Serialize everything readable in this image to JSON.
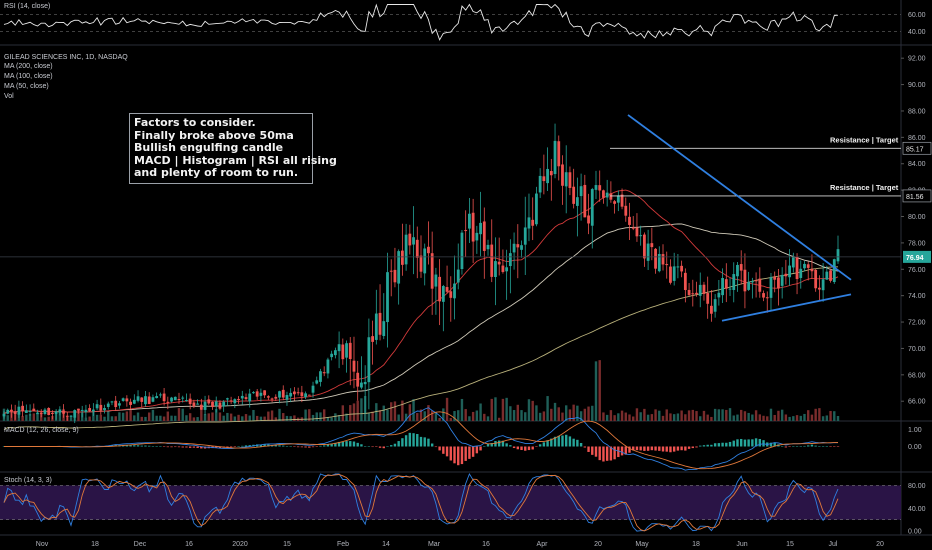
{
  "chart_data": {
    "type": "candlestick",
    "symbol_title": "GILEAD SCIENCES INC, 1D, NASDAQ",
    "legend": [
      "MA (200, close)",
      "MA (100, close)",
      "MA (50, close)",
      "Vol"
    ],
    "price_axis": [
      "92.00",
      "90.00",
      "88.00",
      "86.00",
      "84.00",
      "82.00",
      "80.00",
      "78.00",
      "76.00",
      "74.00",
      "72.00",
      "70.00",
      "68.00",
      "66.00"
    ],
    "last_price": "76.94",
    "resistance_levels": [
      {
        "label": "Resistance | Target",
        "price": "85.17"
      },
      {
        "label": "Resistance | Target",
        "price": "81.56"
      }
    ],
    "annotation_lines": [
      "Factors to consider.",
      "Finally broke above 50ma",
      "Bullish engulfing candle",
      "MACD | Histogram | RSI all rising",
      "and plenty of room to run."
    ],
    "rsi": {
      "title": "RSI (14, close)",
      "levels": [
        "60.00",
        "40.00"
      ]
    },
    "macd": {
      "title": "MACD (12, 26, close, 9)",
      "levels": [
        "1.00",
        "0.00"
      ]
    },
    "stoch": {
      "title": "Stoch (14, 3, 3)",
      "levels": [
        "80.00",
        "40.00",
        "0.00"
      ]
    },
    "time_axis": [
      "Nov",
      "18",
      "Dec",
      "16",
      "2020",
      "15",
      "Feb",
      "14",
      "Mar",
      "16",
      "Apr",
      "20",
      "May",
      "18",
      "Jun",
      "15",
      "Jul",
      "20"
    ],
    "ylim": [
      64.5,
      93
    ],
    "colors": {
      "up": "#26a69a",
      "down": "#ef5350",
      "ma50": "#d23a3a",
      "ma100": "#cfc9b8",
      "ma200": "#b8b07a",
      "trendline": "#2f7fe0",
      "background": "#000000"
    }
  }
}
